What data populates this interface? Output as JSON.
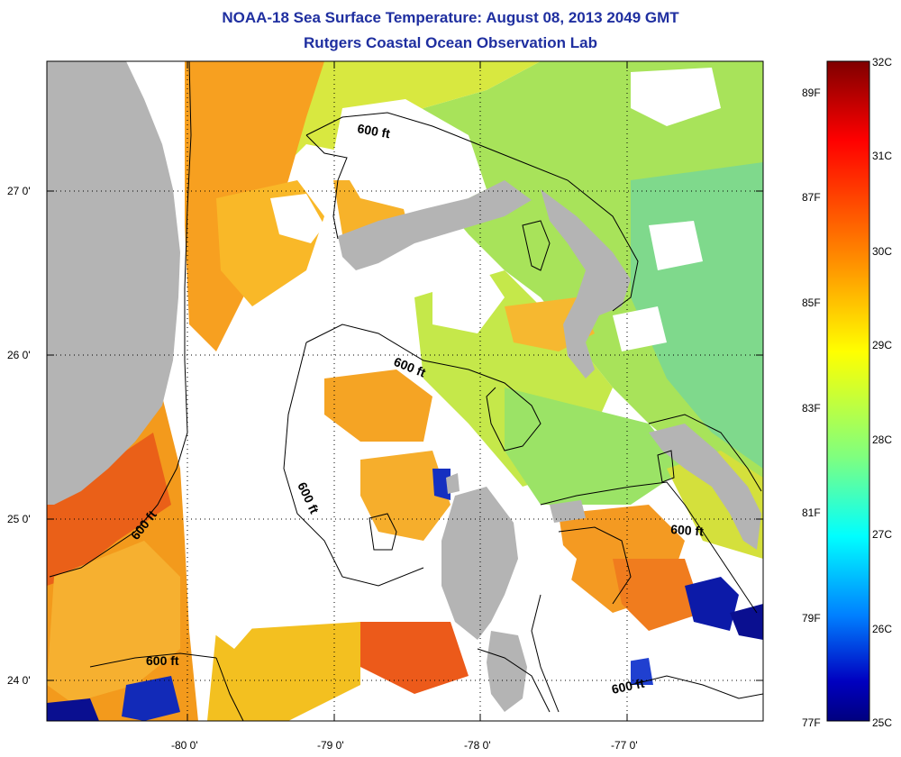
{
  "header": {
    "title": "NOAA-18 Sea Surface Temperature:  August 08, 2013 2049 GMT",
    "subtitle": "Rutgers Coastal Ocean Observation Lab"
  },
  "axes": {
    "lat_ticks": [
      "27 0'",
      "26 0'",
      "25 0'",
      "24 0'"
    ],
    "lon_ticks": [
      "-80 0'",
      "-79 0'",
      "-78 0'",
      "-77 0'"
    ]
  },
  "contours": {
    "label": "600 ft"
  },
  "colorbar": {
    "celsius_ticks": [
      "32C",
      "31C",
      "30C",
      "29C",
      "28C",
      "27C",
      "26C",
      "25C"
    ],
    "fahrenheit_ticks": [
      "89F",
      "87F",
      "85F",
      "83F",
      "81F",
      "79F",
      "77F"
    ],
    "colors": [
      "#7f0000",
      "#ff0000",
      "#ff8c00",
      "#ffff00",
      "#7fff7f",
      "#00ffff",
      "#0080ff",
      "#0000c0",
      "#00007f"
    ]
  },
  "legend_colors": {
    "land": "#b4b4b4",
    "cloud": "#ffffff"
  }
}
